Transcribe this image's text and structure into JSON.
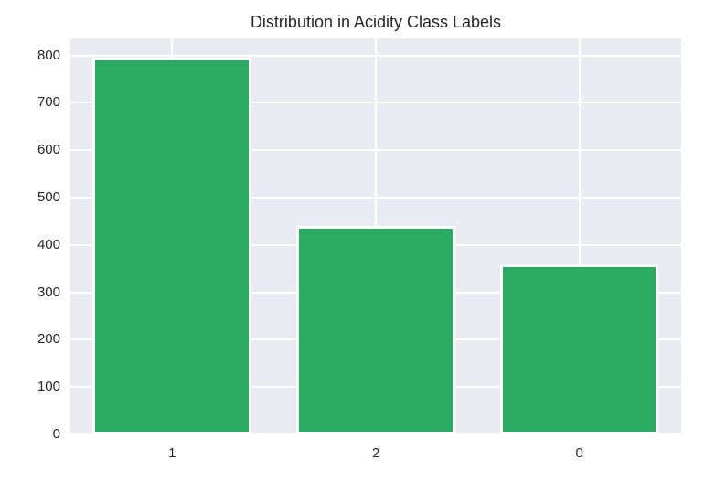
{
  "chart_data": {
    "type": "bar",
    "title": "Distribution in Acidity Class Labels",
    "categories": [
      "1",
      "2",
      "0"
    ],
    "values": [
      795,
      440,
      360
    ],
    "xlabel": "",
    "ylabel": "",
    "yticks": [
      0,
      100,
      200,
      300,
      400,
      500,
      600,
      700,
      800
    ],
    "ylim": [
      0,
      836
    ],
    "grid": true,
    "legend": false,
    "style": "seaborn-darkgrid",
    "colors": {
      "bar_fill": "#2bab61",
      "bar_edge": "#ffffff",
      "plot_background": "#eaeaf2",
      "figure_background": "#ffffff",
      "grid_line": "#ffffff",
      "text": "#262626"
    }
  }
}
